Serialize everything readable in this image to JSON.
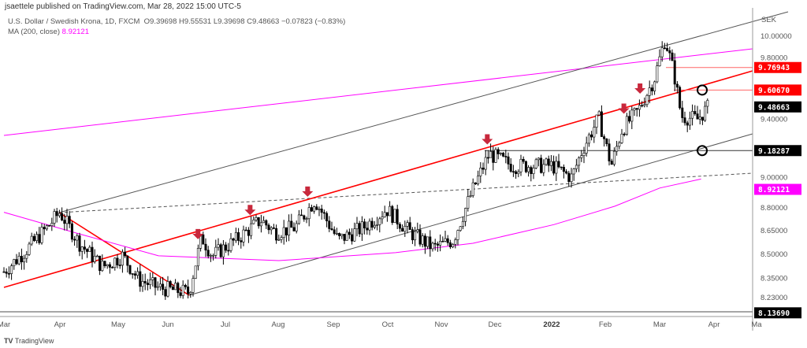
{
  "header": {
    "published": "jsaettele published on TradingView.com, Mar 28, 2022 15:00 UTC-5",
    "symbol": "U.S. Dollar / Swedish Krona, 1D, FXCM",
    "ohlc": "O9.39698  H9.55531  L9.39698  C9.48663  −0.07823 (−0.83%)",
    "ma_label": "MA (200, close)",
    "ma_value": "8.92121"
  },
  "footer": {
    "brand": "TradingView"
  },
  "chart_data": {
    "type": "candlestick",
    "currency": "SEK",
    "y_scale": "log",
    "ylim": [
      8.12,
      10.15
    ],
    "y_ticks": [
      "10.00000",
      "9.80000",
      "9.40000",
      "9.00000",
      "8.80000",
      "8.65000",
      "8.50000",
      "8.35000",
      "8.23000"
    ],
    "x_ticks": [
      "Mar",
      "Apr",
      "May",
      "Jun",
      "Jul",
      "Aug",
      "Sep",
      "Oct",
      "Nov",
      "Dec",
      "2022",
      "Feb",
      "Mar",
      "Apr",
      "Ma"
    ],
    "price_path": [
      [
        "2021-03-01",
        8.39
      ],
      [
        "2021-03-12",
        8.51
      ],
      [
        "2021-03-25",
        8.67
      ],
      [
        "2021-04-01",
        8.77
      ],
      [
        "2021-04-12",
        8.57
      ],
      [
        "2021-04-25",
        8.42
      ],
      [
        "2021-05-06",
        8.49
      ],
      [
        "2021-05-15",
        8.34
      ],
      [
        "2021-05-26",
        8.29
      ],
      [
        "2021-06-12",
        8.26
      ],
      [
        "2021-06-19",
        8.61
      ],
      [
        "2021-06-25",
        8.49
      ],
      [
        "2021-07-08",
        8.59
      ],
      [
        "2021-07-22",
        8.72
      ],
      [
        "2021-07-30",
        8.64
      ],
      [
        "2021-08-10",
        8.67
      ],
      [
        "2021-08-21",
        8.85
      ],
      [
        "2021-09-03",
        8.59
      ],
      [
        "2021-09-17",
        8.67
      ],
      [
        "2021-09-30",
        8.79
      ],
      [
        "2021-10-13",
        8.64
      ],
      [
        "2021-10-26",
        8.54
      ],
      [
        "2021-11-06",
        8.59
      ],
      [
        "2021-11-17",
        8.92
      ],
      [
        "2021-11-26",
        9.16
      ],
      [
        "2021-12-09",
        9.08
      ],
      [
        "2021-12-31",
        9.08
      ],
      [
        "2022-01-11",
        9.0
      ],
      [
        "2022-01-17",
        9.19
      ],
      [
        "2022-01-26",
        9.41
      ],
      [
        "2022-02-02",
        9.08
      ],
      [
        "2022-02-08",
        9.33
      ],
      [
        "2022-02-17",
        9.46
      ],
      [
        "2022-02-26",
        9.69
      ],
      [
        "2022-03-04",
        9.98
      ],
      [
        "2022-03-09",
        9.72
      ],
      [
        "2022-03-13",
        9.42
      ],
      [
        "2022-03-22",
        9.4
      ],
      [
        "2022-03-28",
        9.48663
      ]
    ],
    "ma200": [
      [
        "2021-03-01",
        8.77
      ],
      [
        "2021-04-12",
        8.63
      ],
      [
        "2021-05-26",
        8.49
      ],
      [
        "2021-08-01",
        8.46
      ],
      [
        "2021-10-05",
        8.51
      ],
      [
        "2021-11-17",
        8.57
      ],
      [
        "2022-01-01",
        8.69
      ],
      [
        "2022-02-04",
        8.81
      ],
      [
        "2022-03-01",
        8.93
      ],
      [
        "2022-03-24",
        8.99
      ]
    ],
    "price_labels": [
      {
        "value": "9.76943",
        "color": "#ff0000"
      },
      {
        "value": "9.60670",
        "color": "#ff0000"
      },
      {
        "value": "9.48663",
        "color": "#000000"
      },
      {
        "value": "9.18287",
        "color": "#000000"
      },
      {
        "value": "8.92121",
        "color": "#ff00ff"
      },
      {
        "value": "8.13690",
        "color": "#000000"
      }
    ],
    "arrow_dates": [
      "2021-06-17",
      "2021-07-16",
      "2021-08-17",
      "2021-11-25",
      "2022-02-09",
      "2022-02-18"
    ],
    "colors": {
      "trend": "#ff0000",
      "ma": "#ff00ff",
      "channel": "#555555",
      "arrow": "#c8283c"
    }
  }
}
